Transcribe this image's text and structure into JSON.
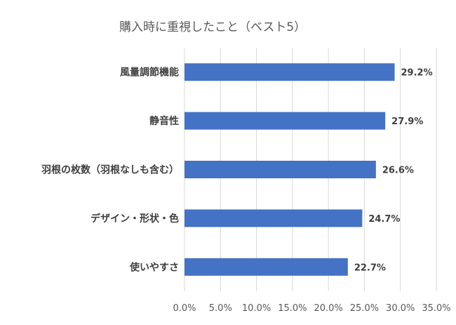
{
  "chart_data": {
    "type": "bar",
    "orientation": "horizontal",
    "title": "購入時に重視したこと（ベスト5）",
    "categories": [
      "風量調節機能",
      "静音性",
      "羽根の枚数（羽根なしも含む）",
      "デザイン・形状・色",
      "使いやすさ"
    ],
    "values": [
      29.2,
      27.9,
      26.6,
      24.7,
      22.7
    ],
    "value_labels": [
      "29.2%",
      "27.9%",
      "26.6%",
      "24.7%",
      "22.7%"
    ],
    "xlim": [
      0,
      35
    ],
    "x_ticks": [
      0,
      5,
      10,
      15,
      20,
      25,
      30,
      35
    ],
    "x_tick_labels": [
      "0.0%",
      "5.0%",
      "10.0%",
      "15.0%",
      "20.0%",
      "25.0%",
      "30.0%",
      "35.0%"
    ],
    "grid": "vertical",
    "legend": "none",
    "bar_color": "#4472c4"
  }
}
